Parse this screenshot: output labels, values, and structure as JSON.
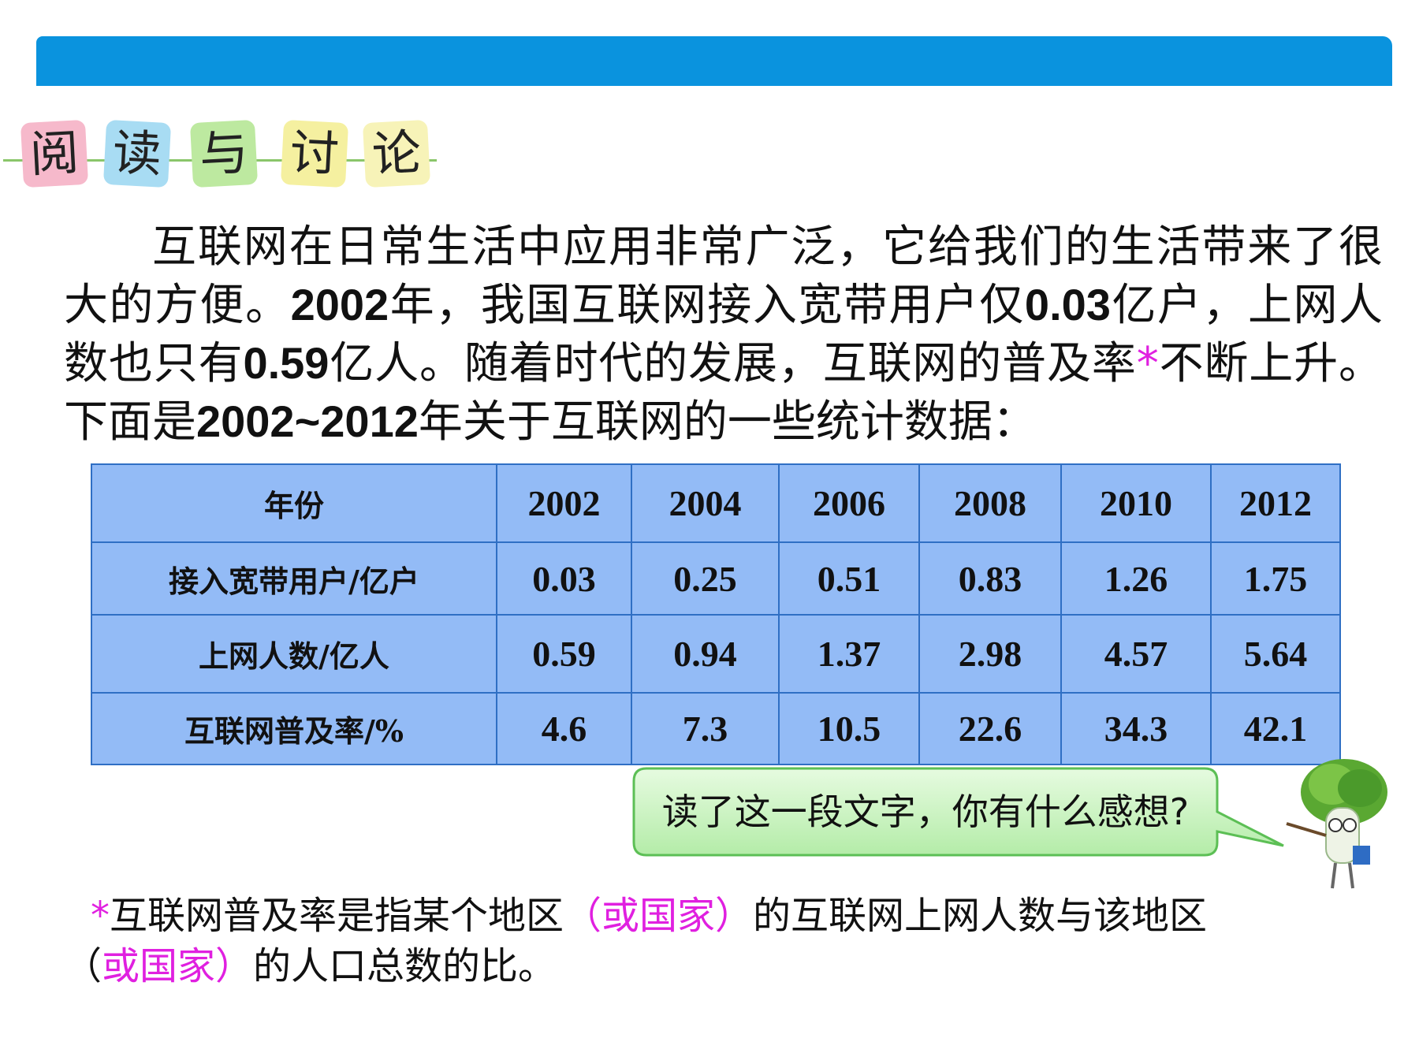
{
  "heading": {
    "chars": [
      "阅",
      "读",
      "与",
      "讨",
      "论"
    ]
  },
  "paragraph": [
    {
      "text": "互联网在日常生活中应用非常广泛，它给我们的生活带来了很大的方便。"
    },
    {
      "text": "2002",
      "bold": true
    },
    {
      "text": "年，我国互联网接入宽带用户仅"
    },
    {
      "text": "0.03",
      "bold": true
    },
    {
      "text": "亿户，上网人数也只有"
    },
    {
      "text": "0.59",
      "bold": true
    },
    {
      "text": "亿人。随着时代的发展，互联网的普及率"
    },
    {
      "text": "*",
      "color": "#e020e0"
    },
    {
      "text": "不断上升。下面是"
    },
    {
      "text": "2002~2012",
      "bold": true
    },
    {
      "text": "年关于互联网的一些统计数据："
    }
  ],
  "table": {
    "header": [
      "年份",
      2002,
      2004,
      2006,
      2008,
      2010,
      2012
    ],
    "rows": [
      [
        "接入宽带用户/亿户",
        0.03,
        0.25,
        0.51,
        0.83,
        1.26,
        1.75
      ],
      [
        "上网人数/亿人",
        0.59,
        0.94,
        1.37,
        2.98,
        4.57,
        5.64
      ],
      [
        "互联网普及率/%",
        4.6,
        7.3,
        10.5,
        22.6,
        34.3,
        42.1
      ]
    ]
  },
  "bubble": {
    "text": "读了这一段文字，你有什么感想?"
  },
  "footnote": [
    {
      "text": "*",
      "color": "#e020e0"
    },
    {
      "text": "互联网普及率是指某个地区"
    },
    {
      "text": "（或国家）",
      "color": "#e020e0"
    },
    {
      "text": "的互联网上网人数与该地区（"
    },
    {
      "text": "或国家）",
      "color": "#e020e0"
    },
    {
      "text": "的人口总数的比。"
    }
  ]
}
